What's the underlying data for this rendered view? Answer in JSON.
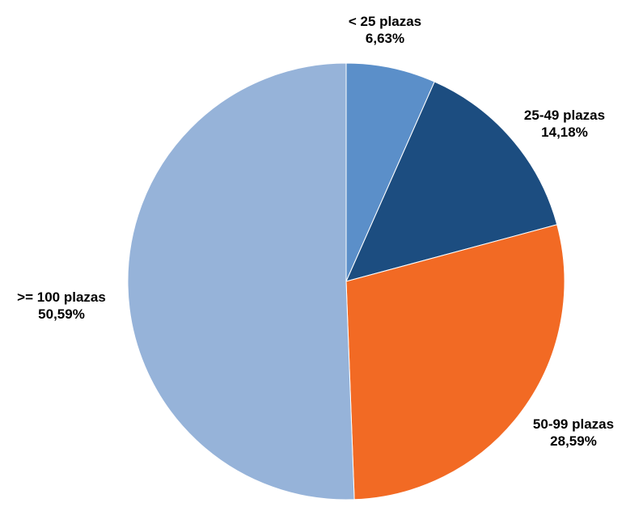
{
  "chart_data": {
    "type": "pie",
    "title": "",
    "slices": [
      {
        "label": "< 25 plazas",
        "value": 6.63,
        "value_label": "6,63%",
        "color": "#5b8fc9"
      },
      {
        "label": "25-49 plazas",
        "value": 14.18,
        "value_label": "14,18%",
        "color": "#1c4d80"
      },
      {
        "label": "50-99 plazas",
        "value": 28.59,
        "value_label": "28,59%",
        "color": "#f26a24"
      },
      {
        "label": ">= 100 plazas",
        "value": 50.59,
        "value_label": "50,59%",
        "color": "#96b3d9"
      }
    ],
    "start_angle_deg": 0,
    "direction": "clockwise",
    "legend": "none",
    "labels_outside": true
  }
}
